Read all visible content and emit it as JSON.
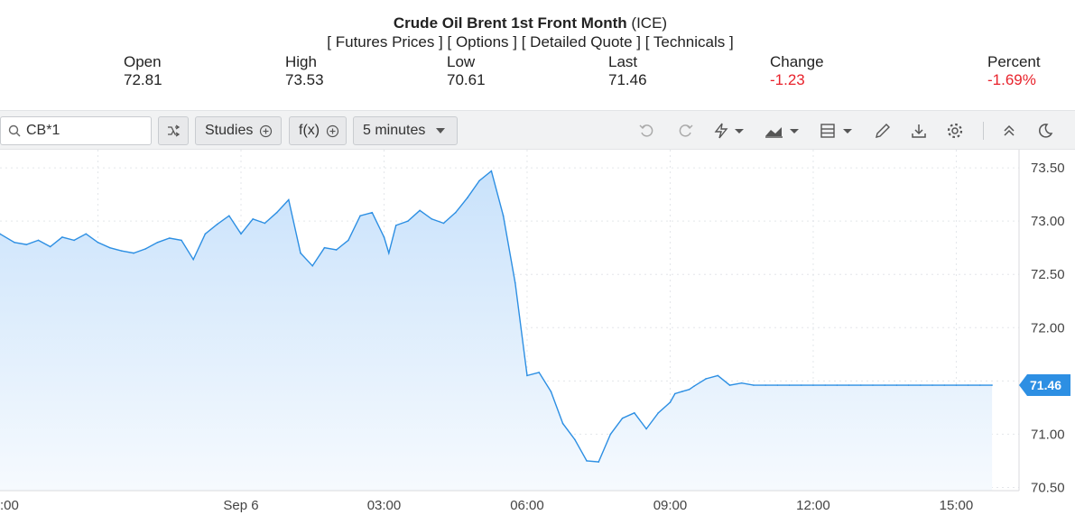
{
  "header": {
    "instrument": "Crude Oil Brent 1st Front Month",
    "exchange": "(ICE)",
    "links": [
      "Futures Prices",
      "Options",
      "Detailed Quote",
      "Technicals"
    ],
    "stats": [
      {
        "label": "Open",
        "value": "72.81",
        "negative": false
      },
      {
        "label": "High",
        "value": "73.53",
        "negative": false
      },
      {
        "label": "Low",
        "value": "70.61",
        "negative": false
      },
      {
        "label": "Last",
        "value": "71.46",
        "negative": false
      },
      {
        "label": "Change",
        "value": "-1.23",
        "negative": true
      },
      {
        "label": "Percent",
        "value": "-1.69%",
        "negative": true
      }
    ]
  },
  "toolbar": {
    "symbol_value": "CB*1",
    "studies_label": "Studies",
    "fx_label": "f(x)",
    "interval_label": "5 minutes"
  },
  "colors": {
    "line": "#2d8fe3",
    "fill_top": "#c9e2fb",
    "fill_bottom": "#f6fafe",
    "price_tag": "#2d8fe3",
    "negative": "#e8232c"
  },
  "chart_data": {
    "type": "area",
    "x_tick_labels": [
      ":00",
      "Sep 6",
      "03:00",
      "06:00",
      "09:00",
      "12:00",
      "15:00"
    ],
    "y_tick_labels": [
      "73.50",
      "73.00",
      "72.50",
      "72.00",
      "71.50",
      "71.00",
      "70.50"
    ],
    "ylim": [
      70.47,
      73.67
    ],
    "grid": true,
    "last_value_label": "71.46",
    "x_unit": "hours from midnight Sep 6",
    "x": [
      -5.0,
      -4.75,
      -4.5,
      -4.25,
      -4.0,
      -3.75,
      -3.5,
      -3.25,
      -3.0,
      -2.75,
      -2.5,
      -2.25,
      -2.0,
      -1.75,
      -1.5,
      -1.25,
      -1.0,
      -0.75,
      -0.5,
      -0.25,
      0.0,
      0.25,
      0.5,
      0.75,
      1.0,
      1.25,
      1.5,
      1.75,
      2.0,
      2.25,
      2.5,
      2.75,
      3.0,
      3.1,
      3.25,
      3.5,
      3.75,
      4.0,
      4.25,
      4.5,
      4.75,
      5.0,
      5.25,
      5.5,
      5.75,
      6.0,
      6.25,
      6.5,
      6.75,
      7.0,
      7.25,
      7.5,
      7.75,
      8.0,
      8.25,
      8.5,
      8.75,
      9.0,
      9.1,
      9.25,
      9.4,
      9.5,
      9.75,
      10.0,
      10.25,
      10.5,
      10.75,
      11.0,
      11.25,
      11.5,
      11.75,
      12.0,
      12.25,
      12.5,
      12.75,
      13.0,
      13.25,
      13.5,
      13.75,
      14.0,
      14.25,
      14.5,
      14.75,
      15.0,
      15.25,
      15.5,
      15.75,
      16.0
    ],
    "values": [
      72.88,
      72.8,
      72.78,
      72.82,
      72.76,
      72.85,
      72.82,
      72.88,
      72.8,
      72.75,
      72.72,
      72.7,
      72.74,
      72.8,
      72.84,
      72.82,
      72.64,
      72.88,
      72.97,
      73.05,
      72.88,
      73.02,
      72.98,
      73.08,
      73.2,
      72.7,
      72.58,
      72.75,
      72.73,
      72.82,
      73.05,
      73.08,
      72.85,
      72.7,
      72.96,
      73.0,
      73.1,
      73.02,
      72.98,
      73.08,
      73.22,
      73.38,
      73.47,
      73.05,
      72.42,
      71.55,
      71.58,
      71.4,
      71.1,
      70.95,
      70.75,
      70.74,
      71.0,
      71.15,
      71.2,
      71.05,
      71.2,
      71.3,
      71.38,
      71.4,
      71.42,
      71.45,
      71.52,
      71.55,
      71.46,
      71.48,
      71.46,
      71.46,
      71.46,
      71.46,
      71.46,
      71.46,
      71.46,
      71.46,
      71.46,
      71.46,
      71.46,
      71.46,
      71.46,
      71.46,
      71.46,
      71.46,
      71.46,
      71.46,
      71.46,
      71.46,
      71.46,
      71.46
    ]
  }
}
